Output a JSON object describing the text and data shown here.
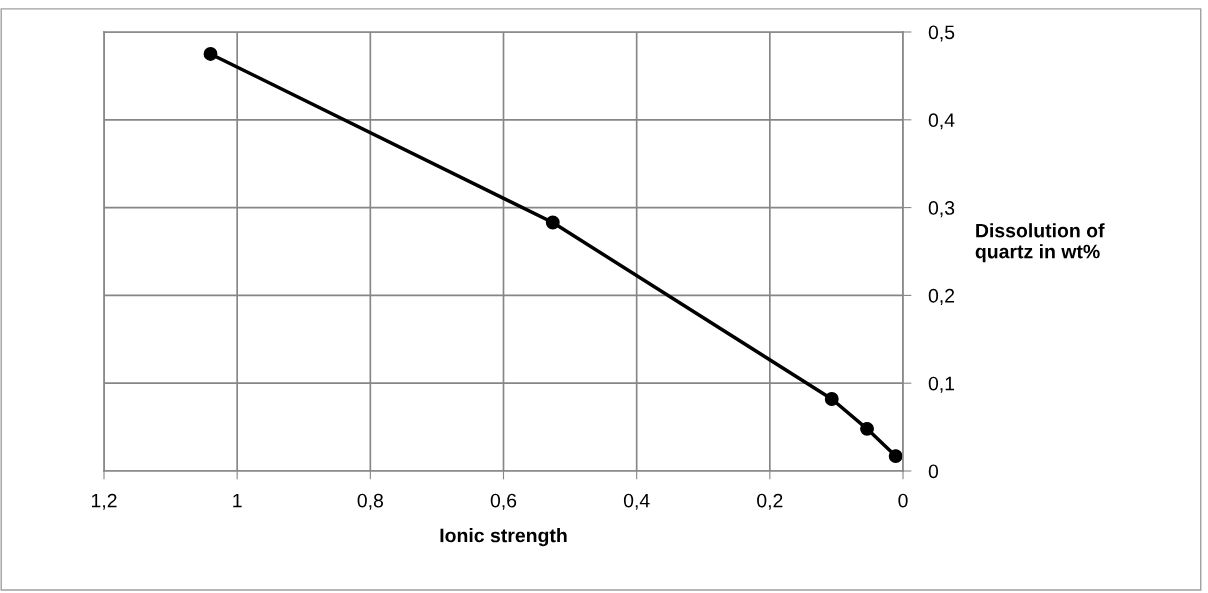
{
  "chart_data": {
    "type": "line",
    "xlabel": "Ionic strength",
    "ylabel": "Dissolution of\nquartz in wt%",
    "x": [
      1.04,
      0.526,
      0.107,
      0.054,
      0.011
    ],
    "series": [
      {
        "color": "#000000",
        "values": [
          0.475,
          0.283,
          0.082,
          0.048,
          0.017
        ]
      }
    ],
    "xlim": [
      1.2,
      0
    ],
    "ylim": [
      0,
      0.5
    ],
    "xticks": [
      {
        "value": 1.2,
        "label": "1,2"
      },
      1,
      {
        "value": 0.8,
        "label": "0,8"
      },
      {
        "value": 0.6,
        "label": "0,6"
      },
      {
        "value": 0.4,
        "label": "0,4"
      },
      {
        "value": 0.2,
        "label": "0,2"
      },
      0
    ],
    "yticks": [
      0,
      {
        "value": 0.1,
        "label": "0,1"
      },
      {
        "value": 0.2,
        "label": "0,2"
      },
      {
        "value": 0.3,
        "label": "0,3"
      },
      {
        "value": 0.4,
        "label": "0,4"
      },
      {
        "value": 0.5,
        "label": "0,5"
      }
    ],
    "grid": true,
    "marker": "circle",
    "line_style": "solid"
  }
}
